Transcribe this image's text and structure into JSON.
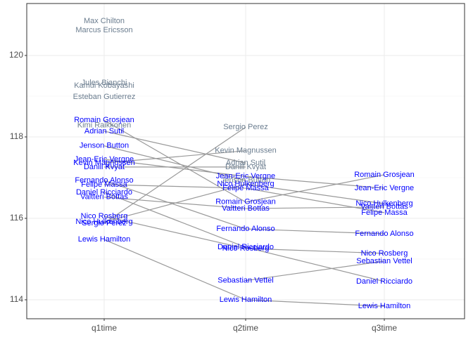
{
  "chart_data": {
    "type": "slope",
    "categories": [
      "q1time",
      "q2time",
      "q3time"
    ],
    "ylim": [
      113.534,
      121.276
    ],
    "yticks": [
      114,
      116,
      118,
      120
    ],
    "yminorticks": [
      115,
      117,
      119
    ],
    "grid": true,
    "line_color": "#999999",
    "colors": {
      "advanced": "#0000ff",
      "eliminated": "#6b7d8f"
    },
    "series": [
      {
        "name": "Max Chilton",
        "values": [
          120.845,
          null,
          null
        ]
      },
      {
        "name": "Marcus Ericsson",
        "values": [
          120.62,
          null,
          null
        ]
      },
      {
        "name": "Jules Bianchi",
        "values": [
          119.33,
          null,
          null
        ]
      },
      {
        "name": "Kamui Kobayashi",
        "values": [
          119.26,
          null,
          null
        ]
      },
      {
        "name": "Esteban Gutierrez",
        "values": [
          118.98,
          null,
          null
        ]
      },
      {
        "name": "Kimi Raikkonen",
        "values": [
          118.28,
          null,
          null
        ]
      },
      {
        "name": "Romain Grosjean",
        "values": [
          118.41,
          116.4,
          117.07
        ]
      },
      {
        "name": "Adrian Sutil",
        "values": [
          118.14,
          117.36,
          null
        ]
      },
      {
        "name": "Jenson Button",
        "values": [
          117.78,
          116.93,
          null
        ]
      },
      {
        "name": "Jean-Eric Vergne",
        "values": [
          117.45,
          117.03,
          116.74
        ]
      },
      {
        "name": "Kevin Magnussen",
        "values": [
          117.36,
          117.66,
          null
        ]
      },
      {
        "name": "Daniil Kvyat",
        "values": [
          117.26,
          117.26,
          null
        ]
      },
      {
        "name": "Fernando Alonso",
        "values": [
          116.93,
          115.74,
          115.62
        ]
      },
      {
        "name": "Felipe Massa",
        "values": [
          116.83,
          116.74,
          116.14
        ]
      },
      {
        "name": "Daniel Ricciardo",
        "values": [
          116.64,
          115.29,
          114.45
        ]
      },
      {
        "name": "Valtteri  Bottas",
        "values": [
          116.52,
          116.24,
          116.28
        ]
      },
      {
        "name": "Nico Rosberg",
        "values": [
          116.05,
          115.26,
          115.14
        ]
      },
      {
        "name": "Nico Hulkenberg",
        "values": [
          115.91,
          116.84,
          116.36
        ]
      },
      {
        "name": "Sergio Perez",
        "values": [
          115.88,
          118.24,
          null
        ]
      },
      {
        "name": "Lewis Hamilton",
        "values": [
          115.48,
          114.0,
          113.84
        ]
      },
      {
        "name": "Sebastian Vettel",
        "values": [
          null,
          114.47,
          114.95
        ]
      }
    ]
  }
}
